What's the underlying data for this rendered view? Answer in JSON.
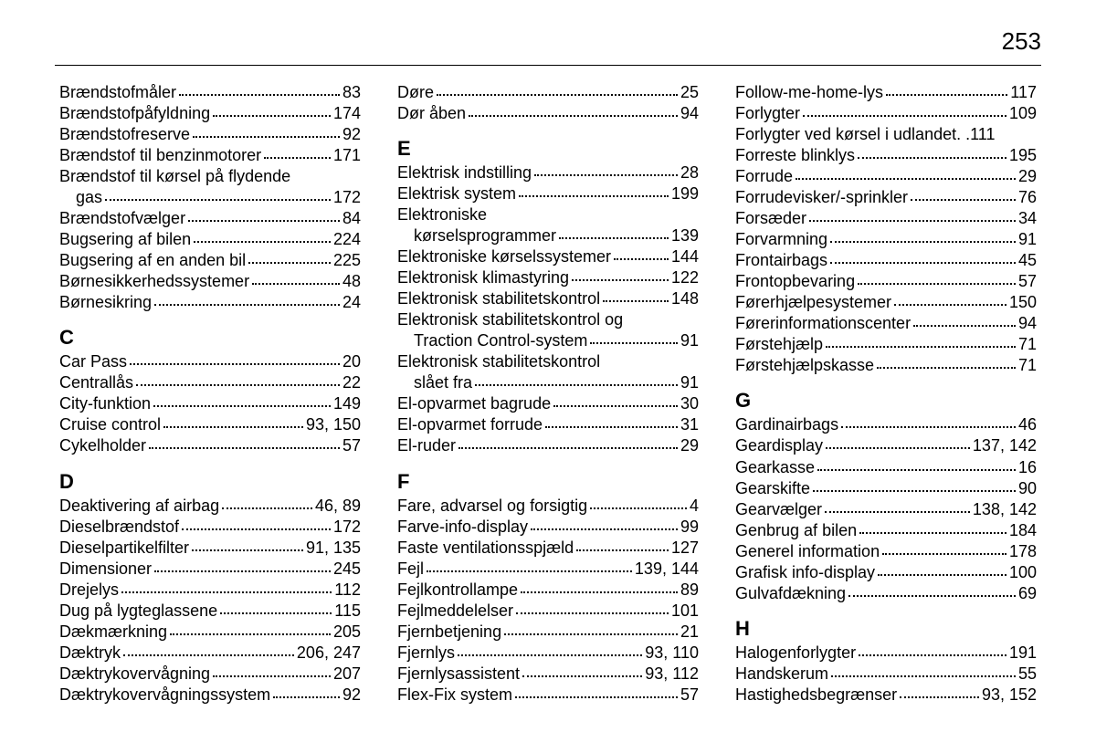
{
  "pageNumber": "253",
  "columns": [
    {
      "groups": [
        {
          "entries": [
            {
              "label": "Brændstofmåler",
              "pages": "83"
            },
            {
              "label": "Brændstofpåfyldning",
              "pages": "174"
            },
            {
              "label": "Brændstofreserve",
              "pages": "92"
            },
            {
              "label": "Brændstof til benzinmotorer",
              "pages": "171"
            },
            {
              "label": "Brændstof til kørsel på flydende",
              "cont": "gas",
              "pages": "172"
            },
            {
              "label": "Brændstofvælger",
              "pages": "84"
            },
            {
              "label": "Bugsering af bilen",
              "pages": "224"
            },
            {
              "label": "Bugsering af en anden bil",
              "pages": "225"
            },
            {
              "label": "Børnesikkerhedssystemer",
              "pages": "48"
            },
            {
              "label": "Børnesikring",
              "pages": "24"
            }
          ]
        },
        {
          "letter": "C",
          "entries": [
            {
              "label": "Car Pass",
              "pages": "20"
            },
            {
              "label": "Centrallås",
              "pages": "22"
            },
            {
              "label": "City-funktion",
              "pages": "149"
            },
            {
              "label": "Cruise control",
              "pages": "93, 150"
            },
            {
              "label": "Cykelholder",
              "pages": "57"
            }
          ]
        },
        {
          "letter": "D",
          "entries": [
            {
              "label": "Deaktivering af airbag",
              "pages": "46, 89"
            },
            {
              "label": "Dieselbrændstof",
              "pages": "172"
            },
            {
              "label": "Dieselpartikelfilter",
              "pages": "91, 135"
            },
            {
              "label": "Dimensioner",
              "pages": "245"
            },
            {
              "label": "Drejelys",
              "pages": "112"
            },
            {
              "label": "Dug på lygteglassene",
              "pages": "115"
            },
            {
              "label": "Dækmærkning",
              "pages": "205"
            },
            {
              "label": "Dæktryk",
              "pages": "206, 247"
            },
            {
              "label": "Dæktrykovervågning",
              "pages": "207"
            },
            {
              "label": "Dæktrykovervågningssystem",
              "pages": "92"
            }
          ]
        }
      ]
    },
    {
      "groups": [
        {
          "entries": [
            {
              "label": "Døre",
              "pages": "25"
            },
            {
              "label": "Dør åben",
              "pages": "94"
            }
          ]
        },
        {
          "letter": "E",
          "entries": [
            {
              "label": "Elektrisk indstilling",
              "pages": "28"
            },
            {
              "label": "Elektrisk system",
              "pages": "199"
            },
            {
              "label": "Elektroniske",
              "cont": "kørselsprogrammer",
              "pages": "139"
            },
            {
              "label": "Elektroniske kørselssystemer",
              "pages": "144"
            },
            {
              "label": "Elektronisk klimastyring",
              "pages": "122"
            },
            {
              "label": "Elektronisk stabilitetskontrol",
              "pages": "148"
            },
            {
              "label": "Elektronisk stabilitetskontrol og",
              "cont": "Traction Control-system",
              "pages": "91"
            },
            {
              "label": "Elektronisk stabilitetskontrol",
              "cont": "slået fra",
              "pages": "91"
            },
            {
              "label": "El-opvarmet bagrude",
              "pages": "30"
            },
            {
              "label": "El-opvarmet forrude",
              "pages": "31"
            },
            {
              "label": "El-ruder",
              "pages": "29"
            }
          ]
        },
        {
          "letter": "F",
          "entries": [
            {
              "label": "Fare, advarsel og forsigtig",
              "pages": "4"
            },
            {
              "label": "Farve-info-display",
              "pages": "99"
            },
            {
              "label": "Faste ventilationsspjæld",
              "pages": "127"
            },
            {
              "label": "Fejl",
              "pages": "139, 144"
            },
            {
              "label": "Fejlkontrollampe",
              "pages": "89"
            },
            {
              "label": "Fejlmeddelelser",
              "pages": "101"
            },
            {
              "label": "Fjernbetjening",
              "pages": "21"
            },
            {
              "label": "Fjernlys",
              "pages": "93, 110"
            },
            {
              "label": "Fjernlysassistent",
              "pages": "93, 112"
            },
            {
              "label": "Flex-Fix system",
              "pages": "57"
            }
          ]
        }
      ]
    },
    {
      "groups": [
        {
          "entries": [
            {
              "label": "Follow-me-home-lys",
              "pages": "117"
            },
            {
              "label": "Forlygter",
              "pages": "109"
            },
            {
              "label": "Forlygter ved kørsel i udlandet",
              "pages": "111",
              "tightDots": true
            },
            {
              "label": "Forreste blinklys",
              "pages": "195"
            },
            {
              "label": "Forrude",
              "pages": "29"
            },
            {
              "label": "Forrudevisker/-sprinkler",
              "pages": "76"
            },
            {
              "label": "Forsæder",
              "pages": "34"
            },
            {
              "label": "Forvarmning",
              "pages": "91"
            },
            {
              "label": "Frontairbags",
              "pages": "45"
            },
            {
              "label": "Frontopbevaring",
              "pages": "57"
            },
            {
              "label": "Førerhjælpesystemer",
              "pages": "150"
            },
            {
              "label": "Førerinformationscenter",
              "pages": "94"
            },
            {
              "label": "Førstehjælp",
              "pages": "71"
            },
            {
              "label": "Førstehjælpskasse",
              "pages": "71"
            }
          ]
        },
        {
          "letter": "G",
          "entries": [
            {
              "label": "Gardinairbags",
              "pages": "46"
            },
            {
              "label": "Geardisplay",
              "pages": "137, 142"
            },
            {
              "label": "Gearkasse",
              "pages": "16"
            },
            {
              "label": "Gearskifte",
              "pages": "90"
            },
            {
              "label": "Gearvælger",
              "pages": "138, 142"
            },
            {
              "label": "Genbrug af bilen",
              "pages": "184"
            },
            {
              "label": "Generel information",
              "pages": "178"
            },
            {
              "label": "Grafisk info-display",
              "pages": "100"
            },
            {
              "label": "Gulvafdækning",
              "pages": "69"
            }
          ]
        },
        {
          "letter": "H",
          "entries": [
            {
              "label": "Halogenforlygter",
              "pages": "191"
            },
            {
              "label": "Handskerum",
              "pages": "55"
            },
            {
              "label": "Hastighedsbegrænser",
              "pages": "93, 152"
            }
          ]
        }
      ]
    }
  ]
}
